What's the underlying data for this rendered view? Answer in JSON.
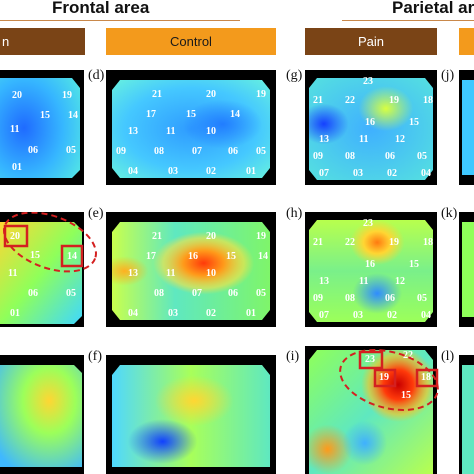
{
  "headers": {
    "frontal": "Frontal area",
    "parietal": "Parietal ar"
  },
  "bands": {
    "pain_left": "n",
    "control": "Control",
    "pain_right": "Pain"
  },
  "panel_labels": {
    "d": "(d)",
    "e": "(e)",
    "f": "(f)",
    "g": "(g)",
    "h": "(h)",
    "i": "(i)",
    "j": "(j)",
    "k": "(k)",
    "l": "(l)"
  },
  "colors": {
    "pain_band": "#7a4416",
    "control_band": "#f39a1c",
    "highlight": "#d42020",
    "panel_bg": "#000000"
  },
  "panels": [
    {
      "id": "left-top",
      "labels": [
        "20",
        "19",
        "11",
        "15",
        "14",
        "06",
        "05",
        "01"
      ],
      "blobs": [
        [
          "#1a5cff",
          0.3
        ],
        [
          "#3fc8ff",
          0.6
        ]
      ]
    },
    {
      "id": "left-mid",
      "labels": [
        "20",
        "15",
        "14",
        "11",
        "06",
        "05",
        "01"
      ],
      "highlights": [
        "20",
        "14"
      ]
    },
    {
      "id": "left-bot",
      "labels": []
    },
    {
      "id": "d-panel",
      "labels": [
        "21",
        "20",
        "19",
        "17",
        "15",
        "14",
        "13",
        "11",
        "10",
        "09",
        "08",
        "07",
        "06",
        "05",
        "04",
        "03",
        "02",
        "01"
      ]
    },
    {
      "id": "e-panel",
      "labels": [
        "21",
        "20",
        "19",
        "17",
        "16",
        "15",
        "14",
        "13",
        "11",
        "10",
        "08",
        "07",
        "06",
        "05",
        "04",
        "03",
        "02",
        "01"
      ]
    },
    {
      "id": "f-panel",
      "labels": []
    },
    {
      "id": "g-panel",
      "labels": [
        "23",
        "22",
        "21",
        "19",
        "18",
        "16",
        "15",
        "13",
        "12",
        "11",
        "09",
        "08",
        "07",
        "06",
        "05",
        "04",
        "03",
        "02"
      ]
    },
    {
      "id": "h-panel",
      "labels": [
        "23",
        "22",
        "21",
        "19",
        "18",
        "16",
        "15",
        "13",
        "12",
        "11",
        "09",
        "08",
        "07",
        "06",
        "05",
        "04",
        "03",
        "02"
      ]
    },
    {
      "id": "i-panel",
      "labels": [
        "23",
        "22",
        "19",
        "18",
        "15"
      ],
      "highlights": [
        "23",
        "19",
        "18"
      ]
    }
  ]
}
